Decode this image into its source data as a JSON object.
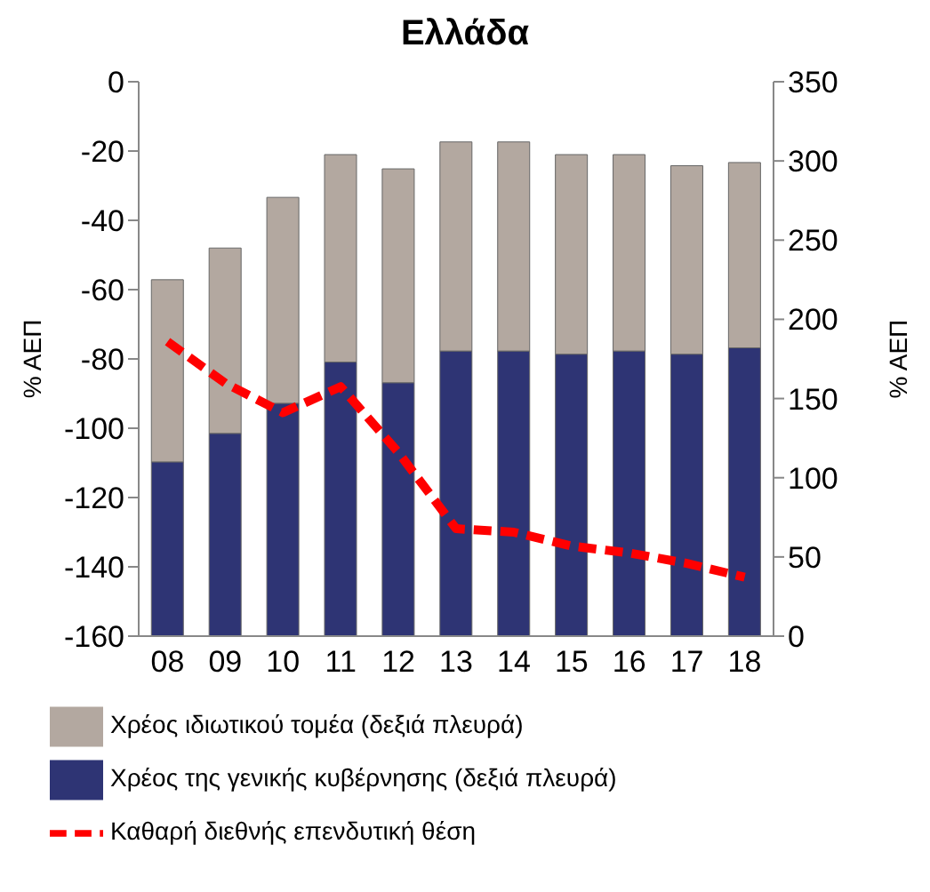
{
  "chart_data": {
    "type": "bar",
    "title": "Ελλάδα",
    "ylabel": "% ΑΕΠ",
    "y2label": "% ΑΕΠ",
    "categories": [
      "08",
      "09",
      "10",
      "11",
      "12",
      "13",
      "14",
      "15",
      "16",
      "17",
      "18"
    ],
    "stacked": true,
    "legend": "bottom",
    "grid": false,
    "series": [
      {
        "name": "Χρέος της γενικής κυβέρνησης (δεξιά πλευρά)",
        "color": "#2e3474",
        "axis": "y2",
        "values": [
          110,
          128,
          147,
          173,
          160,
          180,
          180,
          178,
          180,
          178,
          182
        ]
      },
      {
        "name": "Χρέος ιδιωτικού τομέα (δεξιά πλευρά)",
        "color": "#b3a8a0",
        "axis": "y2",
        "values": [
          115,
          117,
          130,
          131,
          135,
          132,
          132,
          126,
          124,
          119,
          117
        ]
      },
      {
        "name": "Καθαρή διεθνής επενδυτική θέση",
        "type": "line",
        "color": "#ff0000",
        "line_style": "dashed",
        "marker": "none",
        "axis": "y",
        "values": [
          -75,
          -87,
          -95.5,
          -88,
          -107,
          -129,
          -130,
          -134,
          -136,
          -139,
          -143
        ]
      }
    ],
    "ylim": [
      -160,
      0
    ],
    "yticks": [
      -160,
      -140,
      -120,
      -100,
      -80,
      -60,
      -40,
      -20,
      0
    ],
    "y2lim": [
      0,
      350
    ],
    "y2ticks": [
      0,
      50,
      100,
      150,
      200,
      250,
      300,
      350
    ]
  }
}
